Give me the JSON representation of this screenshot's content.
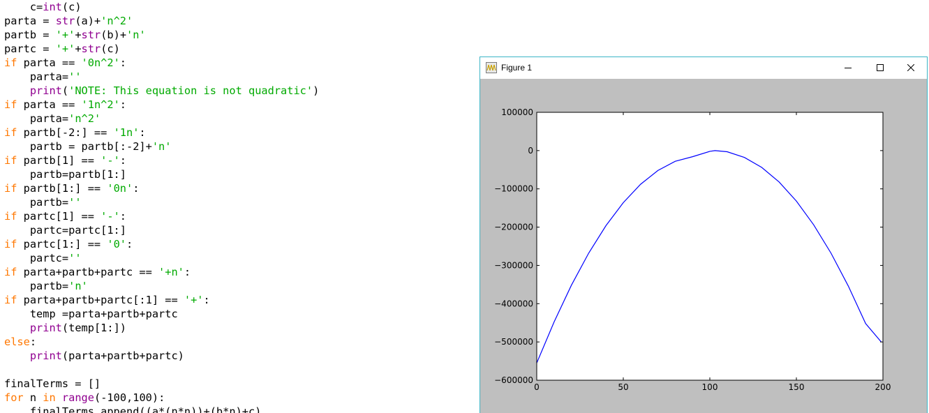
{
  "editor": {
    "lines": [
      [
        {
          "t": "    c=",
          "c": "df"
        },
        {
          "t": "int",
          "c": "bi"
        },
        {
          "t": "(c)",
          "c": "df"
        }
      ],
      [
        {
          "t": "parta = ",
          "c": "df"
        },
        {
          "t": "str",
          "c": "bi"
        },
        {
          "t": "(a)+",
          "c": "df"
        },
        {
          "t": "'n^2'",
          "c": "str"
        }
      ],
      [
        {
          "t": "partb = ",
          "c": "df"
        },
        {
          "t": "'+'",
          "c": "str"
        },
        {
          "t": "+",
          "c": "df"
        },
        {
          "t": "str",
          "c": "bi"
        },
        {
          "t": "(b)+",
          "c": "df"
        },
        {
          "t": "'n'",
          "c": "str"
        }
      ],
      [
        {
          "t": "partc = ",
          "c": "df"
        },
        {
          "t": "'+'",
          "c": "str"
        },
        {
          "t": "+",
          "c": "df"
        },
        {
          "t": "str",
          "c": "bi"
        },
        {
          "t": "(c)",
          "c": "df"
        }
      ],
      [
        {
          "t": "if",
          "c": "kw"
        },
        {
          "t": " parta == ",
          "c": "df"
        },
        {
          "t": "'0n^2'",
          "c": "str"
        },
        {
          "t": ":",
          "c": "df"
        }
      ],
      [
        {
          "t": "    parta=",
          "c": "df"
        },
        {
          "t": "''",
          "c": "str"
        }
      ],
      [
        {
          "t": "    ",
          "c": "df"
        },
        {
          "t": "print",
          "c": "bi"
        },
        {
          "t": "(",
          "c": "df"
        },
        {
          "t": "'NOTE: This equation is not quadratic'",
          "c": "str"
        },
        {
          "t": ")",
          "c": "df"
        }
      ],
      [
        {
          "t": "if",
          "c": "kw"
        },
        {
          "t": " parta == ",
          "c": "df"
        },
        {
          "t": "'1n^2'",
          "c": "str"
        },
        {
          "t": ":",
          "c": "df"
        }
      ],
      [
        {
          "t": "    parta=",
          "c": "df"
        },
        {
          "t": "'n^2'",
          "c": "str"
        }
      ],
      [
        {
          "t": "if",
          "c": "kw"
        },
        {
          "t": " partb[-2:] == ",
          "c": "df"
        },
        {
          "t": "'1n'",
          "c": "str"
        },
        {
          "t": ":",
          "c": "df"
        }
      ],
      [
        {
          "t": "    partb = partb[:-2]+",
          "c": "df"
        },
        {
          "t": "'n'",
          "c": "str"
        }
      ],
      [
        {
          "t": "if",
          "c": "kw"
        },
        {
          "t": " partb[1] == ",
          "c": "df"
        },
        {
          "t": "'-'",
          "c": "str"
        },
        {
          "t": ":",
          "c": "df"
        }
      ],
      [
        {
          "t": "    partb=partb[1:]",
          "c": "df"
        }
      ],
      [
        {
          "t": "if",
          "c": "kw"
        },
        {
          "t": " partb[1:] == ",
          "c": "df"
        },
        {
          "t": "'0n'",
          "c": "str"
        },
        {
          "t": ":",
          "c": "df"
        }
      ],
      [
        {
          "t": "    partb=",
          "c": "df"
        },
        {
          "t": "''",
          "c": "str"
        }
      ],
      [
        {
          "t": "if",
          "c": "kw"
        },
        {
          "t": " partc[1] == ",
          "c": "df"
        },
        {
          "t": "'-'",
          "c": "str"
        },
        {
          "t": ":",
          "c": "df"
        }
      ],
      [
        {
          "t": "    partc=partc[1:]",
          "c": "df"
        }
      ],
      [
        {
          "t": "if",
          "c": "kw"
        },
        {
          "t": " partc[1:] == ",
          "c": "df"
        },
        {
          "t": "'0'",
          "c": "str"
        },
        {
          "t": ":",
          "c": "df"
        }
      ],
      [
        {
          "t": "    partc=",
          "c": "df"
        },
        {
          "t": "''",
          "c": "str"
        }
      ],
      [
        {
          "t": "if",
          "c": "kw"
        },
        {
          "t": " parta+partb+partc == ",
          "c": "df"
        },
        {
          "t": "'+n'",
          "c": "str"
        },
        {
          "t": ":",
          "c": "df"
        }
      ],
      [
        {
          "t": "    partb=",
          "c": "df"
        },
        {
          "t": "'n'",
          "c": "str"
        }
      ],
      [
        {
          "t": "if",
          "c": "kw"
        },
        {
          "t": " parta+partb+partc[:1] == ",
          "c": "df"
        },
        {
          "t": "'+'",
          "c": "str"
        },
        {
          "t": ":",
          "c": "df"
        }
      ],
      [
        {
          "t": "    temp =parta+partb+partc",
          "c": "df"
        }
      ],
      [
        {
          "t": "    ",
          "c": "df"
        },
        {
          "t": "print",
          "c": "bi"
        },
        {
          "t": "(temp[1:])",
          "c": "df"
        }
      ],
      [
        {
          "t": "else",
          "c": "kw"
        },
        {
          "t": ":",
          "c": "df"
        }
      ],
      [
        {
          "t": "    ",
          "c": "df"
        },
        {
          "t": "print",
          "c": "bi"
        },
        {
          "t": "(parta+partb+partc)",
          "c": "df"
        }
      ],
      [],
      [
        {
          "t": "finalTerms = []",
          "c": "df"
        }
      ],
      [
        {
          "t": "for",
          "c": "kw"
        },
        {
          "t": " n ",
          "c": "df"
        },
        {
          "t": "in",
          "c": "kw"
        },
        {
          "t": " ",
          "c": "df"
        },
        {
          "t": "range",
          "c": "bi"
        },
        {
          "t": "(-100,100):",
          "c": "df"
        }
      ],
      [
        {
          "t": "    finalTerms.append((a*(n*n))+(b*n)+c)",
          "c": "df"
        }
      ]
    ],
    "colors": {
      "keyword": "#ff7700",
      "builtin": "#900090",
      "string": "#00aa00",
      "default": "#000000"
    }
  },
  "figure_window": {
    "title": "Figure 1",
    "icon": "matplotlib-figure-icon",
    "controls": {
      "minimize_icon": "minimize-icon",
      "maximize_icon": "maximize-icon",
      "close_icon": "close-icon"
    },
    "border_color": "#3bb4c6",
    "background_color": "#bfbfbf"
  },
  "chart_data": {
    "type": "line",
    "title": "",
    "xlabel": "",
    "ylabel": "",
    "xlim": [
      0,
      200
    ],
    "ylim": [
      -600000,
      100000
    ],
    "x_ticks": [
      0,
      50,
      100,
      150,
      200
    ],
    "x_tick_labels": [
      "0",
      "50",
      "100",
      "150",
      "200"
    ],
    "y_ticks": [
      100000,
      0,
      -100000,
      -200000,
      -300000,
      -400000,
      -500000,
      -600000
    ],
    "y_tick_labels": [
      "100000",
      "0",
      "−100000",
      "−200000",
      "−300000",
      "−400000",
      "−500000",
      "−600000"
    ],
    "grid": false,
    "series": [
      {
        "color": "#0000ff",
        "x": [
          0,
          10,
          20,
          30,
          40,
          50,
          60,
          70,
          80,
          90,
          100,
          103,
          110,
          120,
          130,
          140,
          150,
          160,
          170,
          180,
          190,
          199
        ],
        "y": [
          -555000,
          -448000,
          -352000,
          -268000,
          -196000,
          -136000,
          -88000,
          -52000,
          -28000,
          -16000,
          -2000,
          0,
          -3000,
          -18000,
          -44000,
          -82000,
          -132000,
          -194000,
          -268000,
          -354000,
          -452000,
          -500000
        ]
      }
    ]
  }
}
